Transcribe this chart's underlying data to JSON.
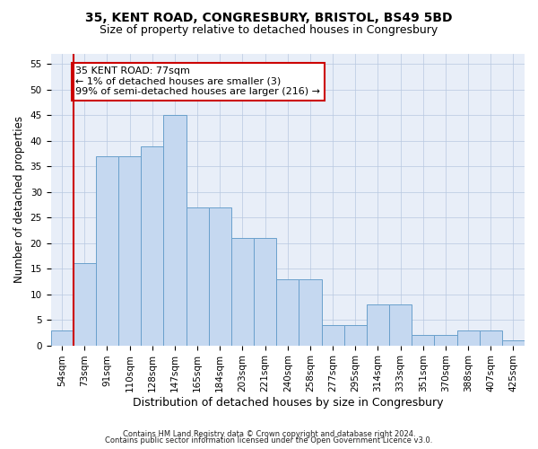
{
  "title1": "35, KENT ROAD, CONGRESBURY, BRISTOL, BS49 5BD",
  "title2": "Size of property relative to detached houses in Congresbury",
  "xlabel": "Distribution of detached houses by size in Congresbury",
  "ylabel": "Number of detached properties",
  "categories": [
    "54sqm",
    "73sqm",
    "91sqm",
    "110sqm",
    "128sqm",
    "147sqm",
    "165sqm",
    "184sqm",
    "203sqm",
    "221sqm",
    "240sqm",
    "258sqm",
    "277sqm",
    "295sqm",
    "314sqm",
    "333sqm",
    "351sqm",
    "370sqm",
    "388sqm",
    "407sqm",
    "425sqm"
  ],
  "values": [
    3,
    16,
    37,
    37,
    39,
    45,
    27,
    27,
    21,
    21,
    13,
    13,
    4,
    4,
    8,
    8,
    2,
    2,
    3,
    3,
    1
  ],
  "bar_color": "#c5d8f0",
  "bar_edge_color": "#6aa0cc",
  "bar_linewidth": 0.7,
  "vline_x": 1,
  "vline_color": "#cc0000",
  "annotation_text": "35 KENT ROAD: 77sqm\n← 1% of detached houses are smaller (3)\n99% of semi-detached houses are larger (216) →",
  "annotation_box_color": "#ffffff",
  "annotation_box_edge": "#cc0000",
  "annotation_fontsize": 8,
  "ylim": [
    0,
    57
  ],
  "yticks": [
    0,
    5,
    10,
    15,
    20,
    25,
    30,
    35,
    40,
    45,
    50,
    55
  ],
  "footnote1": "Contains HM Land Registry data © Crown copyright and database right 2024.",
  "footnote2": "Contains public sector information licensed under the Open Government Licence v3.0.",
  "bg_color": "#e8eef8",
  "title1_fontsize": 10,
  "title2_fontsize": 9,
  "xlabel_fontsize": 9,
  "ylabel_fontsize": 8.5,
  "tick_fontsize": 7.5,
  "footnote_fontsize": 6
}
